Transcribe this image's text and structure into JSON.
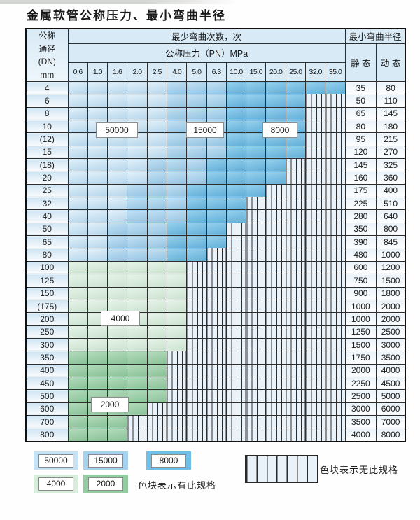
{
  "page": {
    "title": "金属软管公称压力、最小弯曲半径"
  },
  "table": {
    "header": {
      "dn_lines": [
        "公称",
        "通径",
        "(DN)",
        "mm"
      ],
      "cycles_title": "最少弯曲次数，次",
      "radius_title": "最小弯曲半径",
      "pressure_title": "公称压力（PN）MPa",
      "static_label": "静 态",
      "dynamic_label": "动 态",
      "pressures": [
        "0.6",
        "1.0",
        "1.6",
        "2.0",
        "2.5",
        "4.0",
        "5.0",
        "6.3",
        "10.0",
        "15.0",
        "20.0",
        "25.0",
        "32.0",
        "35.0"
      ]
    },
    "rows": [
      {
        "dn": "4",
        "static": "35",
        "dynamic": "80",
        "zones": [
          {
            "cycles": "50000",
            "through": "2.5"
          },
          {
            "cycles": "15000",
            "through": "6.3"
          },
          {
            "cycles": "8000",
            "through": "35.0"
          }
        ]
      },
      {
        "dn": "6",
        "static": "50",
        "dynamic": "110",
        "zones": [
          {
            "cycles": "50000",
            "through": "2.5"
          },
          {
            "cycles": "15000",
            "through": "6.3"
          },
          {
            "cycles": "8000",
            "through": "25.0"
          }
        ]
      },
      {
        "dn": "8",
        "static": "65",
        "dynamic": "145",
        "zones": [
          {
            "cycles": "50000",
            "through": "2.5"
          },
          {
            "cycles": "15000",
            "through": "6.3"
          },
          {
            "cycles": "8000",
            "through": "25.0"
          }
        ]
      },
      {
        "dn": "10",
        "static": "80",
        "dynamic": "180",
        "zones": [
          {
            "cycles": "50000",
            "through": "2.5"
          },
          {
            "cycles": "15000",
            "through": "6.3"
          },
          {
            "cycles": "8000",
            "through": "25.0"
          }
        ]
      },
      {
        "dn": "(12)",
        "static": "95",
        "dynamic": "215",
        "zones": [
          {
            "cycles": "50000",
            "through": "2.5"
          },
          {
            "cycles": "15000",
            "through": "6.3"
          },
          {
            "cycles": "8000",
            "through": "25.0"
          }
        ]
      },
      {
        "dn": "15",
        "static": "120",
        "dynamic": "270",
        "zones": [
          {
            "cycles": "50000",
            "through": "2.5"
          },
          {
            "cycles": "15000",
            "through": "6.3"
          },
          {
            "cycles": "8000",
            "through": "25.0"
          }
        ]
      },
      {
        "dn": "(18)",
        "static": "145",
        "dynamic": "325",
        "zones": [
          {
            "cycles": "50000",
            "through": "2.0"
          },
          {
            "cycles": "15000",
            "through": "5.0"
          },
          {
            "cycles": "8000",
            "through": "20.0"
          }
        ]
      },
      {
        "dn": "20",
        "static": "160",
        "dynamic": "360",
        "zones": [
          {
            "cycles": "50000",
            "through": "2.0"
          },
          {
            "cycles": "15000",
            "through": "5.0"
          },
          {
            "cycles": "8000",
            "through": "20.0"
          }
        ]
      },
      {
        "dn": "25",
        "static": "175",
        "dynamic": "400",
        "zones": [
          {
            "cycles": "50000",
            "through": "1.6"
          },
          {
            "cycles": "15000",
            "through": "4.0"
          },
          {
            "cycles": "8000",
            "through": "15.0"
          }
        ]
      },
      {
        "dn": "32",
        "static": "225",
        "dynamic": "510",
        "zones": [
          {
            "cycles": "50000",
            "through": "1.6"
          },
          {
            "cycles": "15000",
            "through": "4.0"
          },
          {
            "cycles": "8000",
            "through": "10.0"
          }
        ]
      },
      {
        "dn": "40",
        "static": "280",
        "dynamic": "640",
        "zones": [
          {
            "cycles": "50000",
            "through": "1.6"
          },
          {
            "cycles": "15000",
            "through": "4.0"
          },
          {
            "cycles": "8000",
            "through": "10.0"
          }
        ]
      },
      {
        "dn": "50",
        "static": "350",
        "dynamic": "800",
        "zones": [
          {
            "cycles": "50000",
            "through": "1.0"
          },
          {
            "cycles": "15000",
            "through": "2.5"
          },
          {
            "cycles": "8000",
            "through": "6.3"
          }
        ]
      },
      {
        "dn": "65",
        "static": "390",
        "dynamic": "845",
        "zones": [
          {
            "cycles": "50000",
            "through": "1.0"
          },
          {
            "cycles": "15000",
            "through": "2.5"
          },
          {
            "cycles": "8000",
            "through": "6.3"
          }
        ]
      },
      {
        "dn": "80",
        "static": "480",
        "dynamic": "1000",
        "zones": [
          {
            "cycles": "50000",
            "through": "1.0"
          },
          {
            "cycles": "15000",
            "through": "2.5"
          },
          {
            "cycles": "8000",
            "through": "5.0"
          }
        ]
      },
      {
        "dn": "100",
        "static": "600",
        "dynamic": "1200",
        "zones": [
          {
            "cycles": "4000",
            "through": "4.0"
          }
        ]
      },
      {
        "dn": "125",
        "static": "750",
        "dynamic": "1500",
        "zones": [
          {
            "cycles": "4000",
            "through": "4.0"
          }
        ]
      },
      {
        "dn": "150",
        "static": "900",
        "dynamic": "1800",
        "zones": [
          {
            "cycles": "4000",
            "through": "4.0"
          }
        ]
      },
      {
        "dn": "(175)",
        "static": "1000",
        "dynamic": "2000",
        "zones": [
          {
            "cycles": "4000",
            "through": "4.0"
          }
        ]
      },
      {
        "dn": "200",
        "static": "1000",
        "dynamic": "2000",
        "zones": [
          {
            "cycles": "4000",
            "through": "4.0"
          }
        ]
      },
      {
        "dn": "250",
        "static": "1250",
        "dynamic": "2500",
        "zones": [
          {
            "cycles": "4000",
            "through": "4.0"
          }
        ]
      },
      {
        "dn": "300",
        "static": "1500",
        "dynamic": "3000",
        "zones": [
          {
            "cycles": "4000",
            "through": "4.0"
          }
        ]
      },
      {
        "dn": "350",
        "static": "1750",
        "dynamic": "3500",
        "zones": [
          {
            "cycles": "2000",
            "through": "2.5"
          }
        ]
      },
      {
        "dn": "400",
        "static": "2000",
        "dynamic": "4000",
        "zones": [
          {
            "cycles": "2000",
            "through": "2.5"
          }
        ]
      },
      {
        "dn": "450",
        "static": "2250",
        "dynamic": "4500",
        "zones": [
          {
            "cycles": "2000",
            "through": "2.5"
          }
        ]
      },
      {
        "dn": "500",
        "static": "2500",
        "dynamic": "5000",
        "zones": [
          {
            "cycles": "2000",
            "through": "2.5"
          }
        ]
      },
      {
        "dn": "600",
        "static": "3000",
        "dynamic": "6000",
        "zones": [
          {
            "cycles": "2000",
            "through": "2.0"
          }
        ]
      },
      {
        "dn": "700",
        "static": "3500",
        "dynamic": "7000",
        "zones": [
          {
            "cycles": "2000",
            "through": "1.6"
          }
        ]
      },
      {
        "dn": "800",
        "static": "4000",
        "dynamic": "8000",
        "zones": [
          {
            "cycles": "2000",
            "through": "1.6"
          }
        ]
      }
    ]
  },
  "floating_labels": [
    {
      "text": "50000"
    },
    {
      "text": "15000"
    },
    {
      "text": "8000"
    },
    {
      "text": "4000"
    },
    {
      "text": "2000"
    }
  ],
  "legend": {
    "spec_items": [
      {
        "label": "50000"
      },
      {
        "label": "15000"
      },
      {
        "label": "8000"
      },
      {
        "label": "4000"
      },
      {
        "label": "2000"
      }
    ],
    "spec_note": "色块表示有此规格",
    "no_spec_note": "色块表示无此规格"
  },
  "colors": {
    "cycles_50000": "#c6e3f5",
    "cycles_15000": "#a4d2ee",
    "cycles_8000": "#6fc0e7",
    "cycles_4000": "#d8ecdc",
    "cycles_2000": "#94cca1",
    "no_spec_bg": "#eaf2f9",
    "grid_line": "#2e2e2e",
    "header_bg": "#d8eaf6"
  }
}
